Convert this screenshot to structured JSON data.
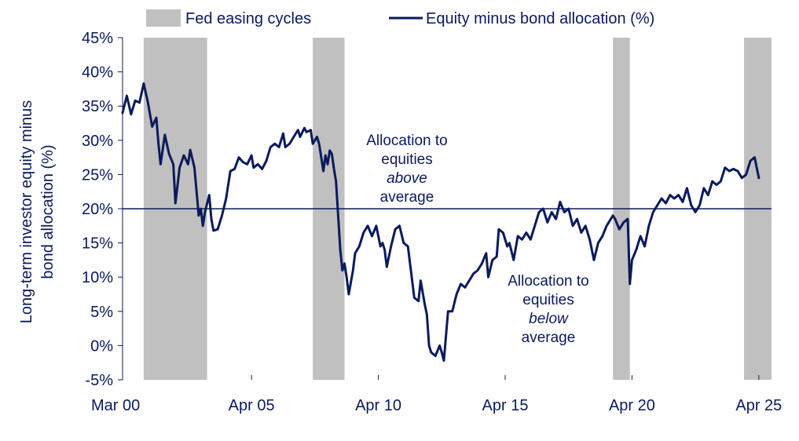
{
  "chart_data": {
    "type": "line",
    "title": "",
    "ylabel": "Long-term investor equity minus bond allocation (%)",
    "ylabel_lines": [
      "Long-term investor equity minus",
      "bond allocation (%)"
    ],
    "xlabel": "",
    "xlim": [
      "2000-03",
      "2025-10"
    ],
    "ylim": [
      -5,
      45
    ],
    "y_ticks": [
      -5,
      0,
      5,
      10,
      15,
      20,
      25,
      30,
      35,
      40,
      45
    ],
    "y_tick_labels": [
      "-5%",
      "0%",
      "5%",
      "10%",
      "15%",
      "20%",
      "25%",
      "30%",
      "35%",
      "40%",
      "45%"
    ],
    "x_ticks": [
      "2000-03",
      "2005-04",
      "2010-04",
      "2015-04",
      "2020-04",
      "2025-04"
    ],
    "x_tick_labels": [
      "Mar 00",
      "Apr 05",
      "Apr 10",
      "Apr 15",
      "Apr 20",
      "Apr 25"
    ],
    "grid": false,
    "legend_position": "top",
    "reference_line": {
      "y": 20
    },
    "shaded_periods": {
      "name": "Fed easing cycles",
      "color": "#c0c0c0",
      "ranges": [
        [
          "2001-01",
          "2003-07"
        ],
        [
          "2007-09",
          "2008-12"
        ],
        [
          "2019-07",
          "2020-03"
        ],
        [
          "2024-09",
          "2025-10"
        ]
      ]
    },
    "series": [
      {
        "name": "Equity minus bond allocation (%)",
        "color": "#0a1a5c",
        "points": [
          [
            "2000-03",
            34.0
          ],
          [
            "2000-05",
            36.5
          ],
          [
            "2000-07",
            33.8
          ],
          [
            "2000-09",
            35.8
          ],
          [
            "2000-11",
            35.5
          ],
          [
            "2001-01",
            38.3
          ],
          [
            "2001-03",
            35.5
          ],
          [
            "2001-05",
            32.0
          ],
          [
            "2001-07",
            33.3
          ],
          [
            "2001-08",
            29.5
          ],
          [
            "2001-09",
            26.5
          ],
          [
            "2001-11",
            30.8
          ],
          [
            "2002-01",
            28.0
          ],
          [
            "2002-03",
            26.5
          ],
          [
            "2002-04",
            20.8
          ],
          [
            "2002-06",
            26.0
          ],
          [
            "2002-08",
            27.8
          ],
          [
            "2002-10",
            26.5
          ],
          [
            "2002-11",
            28.6
          ],
          [
            "2003-01",
            26.0
          ],
          [
            "2003-03",
            19.0
          ],
          [
            "2003-04",
            20.0
          ],
          [
            "2003-05",
            17.5
          ],
          [
            "2003-06",
            19.5
          ],
          [
            "2003-08",
            22.0
          ],
          [
            "2003-09",
            18.5
          ],
          [
            "2003-10",
            16.8
          ],
          [
            "2003-12",
            17.0
          ],
          [
            "2004-02",
            19.0
          ],
          [
            "2004-04",
            21.5
          ],
          [
            "2004-06",
            25.5
          ],
          [
            "2004-08",
            25.8
          ],
          [
            "2004-10",
            27.5
          ],
          [
            "2004-12",
            26.8
          ],
          [
            "2005-02",
            26.5
          ],
          [
            "2005-04",
            27.8
          ],
          [
            "2005-05",
            26.0
          ],
          [
            "2005-07",
            26.5
          ],
          [
            "2005-09",
            25.8
          ],
          [
            "2005-11",
            27.0
          ],
          [
            "2006-01",
            29.0
          ],
          [
            "2006-03",
            29.5
          ],
          [
            "2006-05",
            29.0
          ],
          [
            "2006-07",
            31.0
          ],
          [
            "2006-08",
            29.0
          ],
          [
            "2006-10",
            29.5
          ],
          [
            "2006-12",
            30.5
          ],
          [
            "2007-02",
            31.5
          ],
          [
            "2007-03",
            30.5
          ],
          [
            "2007-05",
            31.8
          ],
          [
            "2007-06",
            31.2
          ],
          [
            "2007-08",
            31.5
          ],
          [
            "2007-09",
            29.5
          ],
          [
            "2007-11",
            30.5
          ],
          [
            "2007-12",
            29.5
          ],
          [
            "2008-02",
            25.5
          ],
          [
            "2008-03",
            27.8
          ],
          [
            "2008-04",
            26.5
          ],
          [
            "2008-05",
            28.5
          ],
          [
            "2008-06",
            28.0
          ],
          [
            "2008-07",
            25.8
          ],
          [
            "2008-08",
            24.0
          ],
          [
            "2008-10",
            14.0
          ],
          [
            "2008-11",
            11.0
          ],
          [
            "2008-12",
            12.0
          ],
          [
            "2009-01",
            10.0
          ],
          [
            "2009-02",
            7.5
          ],
          [
            "2009-04",
            11.0
          ],
          [
            "2009-05",
            13.5
          ],
          [
            "2009-07",
            14.5
          ],
          [
            "2009-09",
            16.5
          ],
          [
            "2009-11",
            17.5
          ],
          [
            "2010-01",
            16.0
          ],
          [
            "2010-03",
            17.5
          ],
          [
            "2010-05",
            14.5
          ],
          [
            "2010-06",
            15.0
          ],
          [
            "2010-07",
            14.0
          ],
          [
            "2010-08",
            11.5
          ],
          [
            "2010-10",
            14.5
          ],
          [
            "2010-12",
            17.0
          ],
          [
            "2011-02",
            17.5
          ],
          [
            "2011-04",
            15.0
          ],
          [
            "2011-06",
            14.5
          ],
          [
            "2011-08",
            9.5
          ],
          [
            "2011-09",
            7.0
          ],
          [
            "2011-11",
            6.5
          ],
          [
            "2011-12",
            9.5
          ],
          [
            "2012-02",
            6.0
          ],
          [
            "2012-03",
            4.5
          ],
          [
            "2012-04",
            0.0
          ],
          [
            "2012-05",
            -1.0
          ],
          [
            "2012-07",
            -1.5
          ],
          [
            "2012-09",
            0.0
          ],
          [
            "2012-10",
            -1.0
          ],
          [
            "2012-11",
            -2.2
          ],
          [
            "2013-01",
            5.0
          ],
          [
            "2013-03",
            5.0
          ],
          [
            "2013-05",
            7.5
          ],
          [
            "2013-07",
            9.0
          ],
          [
            "2013-09",
            8.5
          ],
          [
            "2013-11",
            9.5
          ],
          [
            "2014-01",
            10.5
          ],
          [
            "2014-03",
            11.0
          ],
          [
            "2014-05",
            12.0
          ],
          [
            "2014-07",
            13.5
          ],
          [
            "2014-08",
            10.0
          ],
          [
            "2014-10",
            12.5
          ],
          [
            "2014-12",
            13.0
          ],
          [
            "2015-01",
            17.0
          ],
          [
            "2015-03",
            16.5
          ],
          [
            "2015-05",
            14.5
          ],
          [
            "2015-06",
            15.0
          ],
          [
            "2015-08",
            12.5
          ],
          [
            "2015-10",
            16.0
          ],
          [
            "2015-12",
            15.5
          ],
          [
            "2016-02",
            16.5
          ],
          [
            "2016-04",
            15.5
          ],
          [
            "2016-06",
            17.5
          ],
          [
            "2016-08",
            19.5
          ],
          [
            "2016-10",
            20.0
          ],
          [
            "2016-12",
            18.0
          ],
          [
            "2017-02",
            19.5
          ],
          [
            "2017-04",
            18.5
          ],
          [
            "2017-06",
            21.0
          ],
          [
            "2017-08",
            19.5
          ],
          [
            "2017-10",
            20.0
          ],
          [
            "2017-12",
            17.5
          ],
          [
            "2018-02",
            18.5
          ],
          [
            "2018-04",
            16.5
          ],
          [
            "2018-06",
            17.5
          ],
          [
            "2018-08",
            15.5
          ],
          [
            "2018-10",
            12.5
          ],
          [
            "2018-12",
            15.0
          ],
          [
            "2019-02",
            16.0
          ],
          [
            "2019-04",
            17.5
          ],
          [
            "2019-06",
            18.5
          ],
          [
            "2019-07",
            19.0
          ],
          [
            "2019-08",
            18.5
          ],
          [
            "2019-10",
            17.0
          ],
          [
            "2019-12",
            18.0
          ],
          [
            "2020-02",
            18.5
          ],
          [
            "2020-03",
            9.0
          ],
          [
            "2020-04",
            12.5
          ],
          [
            "2020-06",
            14.0
          ],
          [
            "2020-08",
            16.0
          ],
          [
            "2020-10",
            14.5
          ],
          [
            "2020-12",
            17.5
          ],
          [
            "2021-02",
            19.5
          ],
          [
            "2021-04",
            20.5
          ],
          [
            "2021-06",
            21.5
          ],
          [
            "2021-08",
            20.8
          ],
          [
            "2021-10",
            22.0
          ],
          [
            "2021-12",
            21.5
          ],
          [
            "2022-02",
            22.0
          ],
          [
            "2022-04",
            21.0
          ],
          [
            "2022-06",
            23.0
          ],
          [
            "2022-08",
            20.5
          ],
          [
            "2022-10",
            19.5
          ],
          [
            "2022-12",
            20.5
          ],
          [
            "2023-02",
            23.0
          ],
          [
            "2023-04",
            22.0
          ],
          [
            "2023-06",
            24.0
          ],
          [
            "2023-08",
            23.5
          ],
          [
            "2023-10",
            24.0
          ],
          [
            "2023-12",
            26.0
          ],
          [
            "2024-02",
            25.5
          ],
          [
            "2024-04",
            25.8
          ],
          [
            "2024-06",
            25.5
          ],
          [
            "2024-08",
            24.5
          ],
          [
            "2024-10",
            25.0
          ],
          [
            "2024-12",
            27.0
          ],
          [
            "2025-02",
            27.5
          ],
          [
            "2025-03",
            26.0
          ],
          [
            "2025-04",
            24.5
          ]
        ]
      }
    ],
    "annotations": {
      "above": {
        "lines": [
          "Allocation to",
          "equities",
          "above",
          "average"
        ],
        "italic_line": 2
      },
      "below": {
        "lines": [
          "Allocation to",
          "equities",
          "below",
          "average"
        ],
        "italic_line": 2
      }
    }
  }
}
